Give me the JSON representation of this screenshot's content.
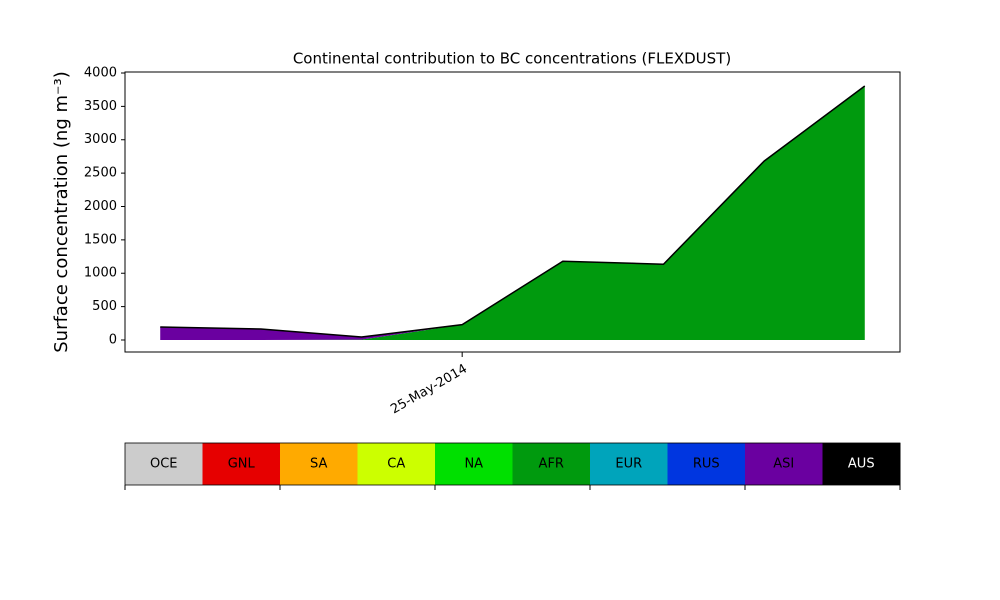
{
  "chart_data": {
    "type": "stackedarea",
    "title": "Continental contribution to BC concentrations (FLEXDUST)",
    "y_label": "Surface concentration (ng m⁻³)",
    "categories": [
      null,
      null,
      null,
      "25-May-2014",
      null,
      null,
      null,
      null
    ],
    "series": [
      {
        "name": "AFR",
        "color": "#009a0e",
        "values": [
          0,
          0,
          5,
          230,
          1180,
          1135,
          2680,
          3805
        ]
      },
      {
        "name": "ASI",
        "color": "#6a00a0",
        "values": [
          195,
          165,
          40,
          0,
          0,
          0,
          0,
          0
        ]
      }
    ],
    "ylim": [
      -180,
      4015
    ],
    "yticks": [
      0,
      500,
      1000,
      1500,
      2000,
      2500,
      3000,
      3500,
      4000
    ],
    "colorbar": [
      {
        "name": "OCE",
        "color": "#cccccc"
      },
      {
        "name": "GNL",
        "color": "#e60000"
      },
      {
        "name": "SA",
        "color": "#ffaa00"
      },
      {
        "name": "CA",
        "color": "#ccff00"
      },
      {
        "name": "NA",
        "color": "#00e000"
      },
      {
        "name": "AFR",
        "color": "#009a0e"
      },
      {
        "name": "EUR",
        "color": "#00a4bb"
      },
      {
        "name": "RUS",
        "color": "#0036e0"
      },
      {
        "name": "ASI",
        "color": "#6a00a0"
      },
      {
        "name": "AUS",
        "color": "#000000"
      }
    ]
  }
}
